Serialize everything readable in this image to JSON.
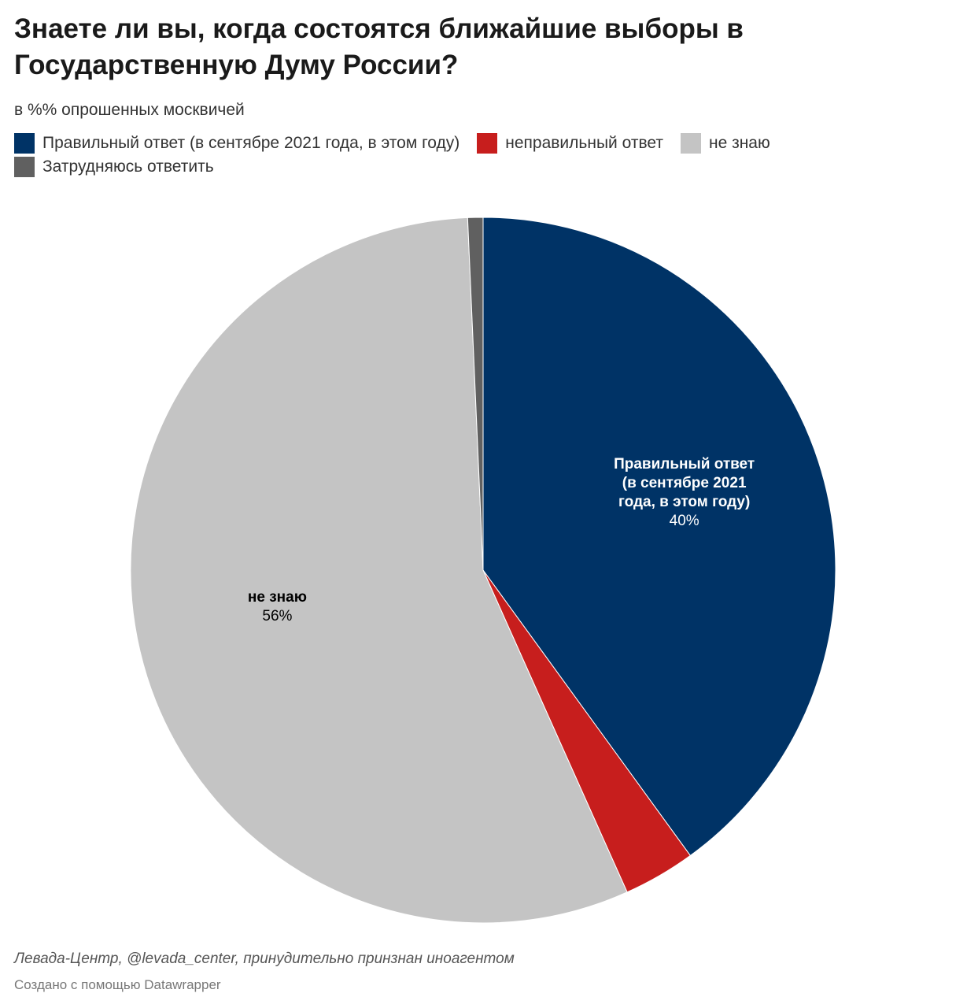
{
  "title": "Знаете ли вы, когда состоятся ближайшие выборы в Государственную Думу России?",
  "subtitle": "в %% опрошенных москвичей",
  "legend": [
    {
      "label": "Правильный ответ (в сентябре 2021 года, в этом году)",
      "color": "#003366"
    },
    {
      "label": "неправильный ответ",
      "color": "#c71e1d"
    },
    {
      "label": "не знаю",
      "color": "#c4c4c4"
    },
    {
      "label": "Затрудняюсь ответить",
      "color": "#606060"
    }
  ],
  "chart_data": {
    "type": "pie",
    "start_angle_deg": 0,
    "direction": "clockwise",
    "slices": [
      {
        "name": "Правильный ответ (в сентябре 2021 года, в этом году)",
        "value": 40,
        "color": "#003366",
        "label_lines": [
          "Правильный ответ",
          "(в сентябре 2021",
          "года, в этом году)"
        ],
        "value_label": "40%",
        "label_color": "#ffffff"
      },
      {
        "name": "неправильный ответ",
        "value": 3.3,
        "color": "#c71e1d",
        "label_lines": [],
        "value_label": "",
        "label_color": "#ffffff"
      },
      {
        "name": "не знаю",
        "value": 56,
        "color": "#c4c4c4",
        "label_lines": [
          "не знаю"
        ],
        "value_label": "56%",
        "label_color": "#000000"
      },
      {
        "name": "Затрудняюсь ответить",
        "value": 0.7,
        "color": "#606060",
        "label_lines": [],
        "value_label": "",
        "label_color": "#ffffff"
      }
    ]
  },
  "footer": {
    "source": "Левада-Центр, @levada_center, принудительно принзнан иноагентом",
    "credit": "Создано с помощью Datawrapper"
  }
}
